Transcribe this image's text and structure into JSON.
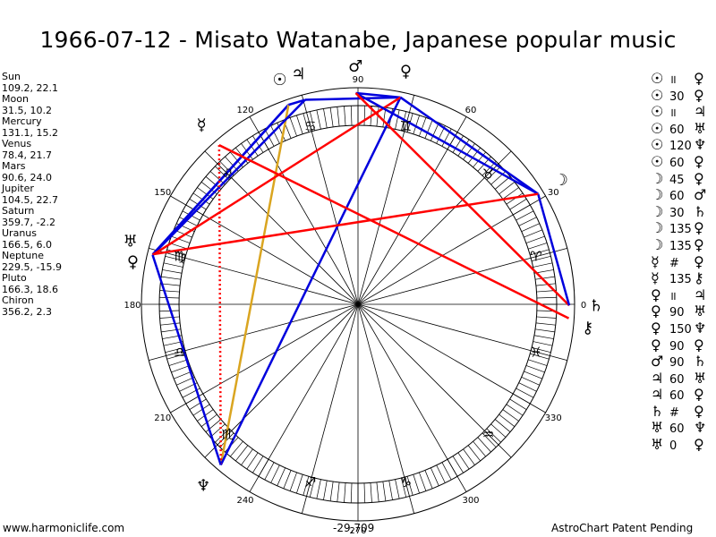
{
  "title": "1966-07-12 - Misato Watanabe, Japanese popular music",
  "positions": [
    {
      "name": "Sun",
      "value": "109.2, 22.1"
    },
    {
      "name": "Moon",
      "value": "31.5, 10.2"
    },
    {
      "name": "Mercury",
      "value": "131.1, 15.2"
    },
    {
      "name": "Venus",
      "value": "78.4, 21.7"
    },
    {
      "name": "Mars",
      "value": "90.6, 24.0"
    },
    {
      "name": "Jupiter",
      "value": "104.5, 22.7"
    },
    {
      "name": "Saturn",
      "value": "359.7, -2.2"
    },
    {
      "name": "Uranus",
      "value": "166.5, 6.0"
    },
    {
      "name": "Neptune",
      "value": "229.5, -15.9"
    },
    {
      "name": "Pluto",
      "value": "166.3, 18.6"
    },
    {
      "name": "Chiron",
      "value": "356.2, 2.3"
    }
  ],
  "aspects": [
    {
      "p1": "Sun",
      "g1": "☉",
      "aspect": "॥",
      "g2": "♀",
      "p2": "Venus"
    },
    {
      "p1": "Sun",
      "g1": "☉",
      "aspect": "30",
      "g2": "♀",
      "p2": "Venus"
    },
    {
      "p1": "Sun",
      "g1": "☉",
      "aspect": "॥",
      "g2": "♃",
      "p2": "Jupiter"
    },
    {
      "p1": "Sun",
      "g1": "☉",
      "aspect": "60",
      "g2": "♅",
      "p2": "Uranus"
    },
    {
      "p1": "Sun",
      "g1": "☉",
      "aspect": "120",
      "g2": "♆",
      "p2": "Neptune"
    },
    {
      "p1": "Sun",
      "g1": "☉",
      "aspect": "60",
      "g2": "♀",
      "p2": "Pluto"
    },
    {
      "p1": "Moon",
      "g1": "☽",
      "aspect": "45",
      "g2": "♀",
      "p2": "Venus"
    },
    {
      "p1": "Moon",
      "g1": "☽",
      "aspect": "60",
      "g2": "♂",
      "p2": "Mars"
    },
    {
      "p1": "Moon",
      "g1": "☽",
      "aspect": "30",
      "g2": "♄",
      "p2": "Saturn"
    },
    {
      "p1": "Moon",
      "g1": "☽",
      "aspect": "135",
      "g2": "♀",
      "p2": "Pluto"
    },
    {
      "p1": "Moon",
      "g1": "☽",
      "aspect": "135",
      "g2": "♀",
      "p2": "Pluto"
    },
    {
      "p1": "Mercury",
      "g1": "☿",
      "aspect": "#",
      "g2": "♀",
      "p2": "Pluto"
    },
    {
      "p1": "Mercury",
      "g1": "☿",
      "aspect": "135",
      "g2": "⚷",
      "p2": "Chiron"
    },
    {
      "p1": "Venus",
      "g1": "♀",
      "aspect": "॥",
      "g2": "♃",
      "p2": "Jupiter"
    },
    {
      "p1": "Venus",
      "g1": "♀",
      "aspect": "90",
      "g2": "♅",
      "p2": "Uranus"
    },
    {
      "p1": "Venus",
      "g1": "♀",
      "aspect": "150",
      "g2": "♆",
      "p2": "Neptune"
    },
    {
      "p1": "Venus",
      "g1": "♀",
      "aspect": "90",
      "g2": "♀",
      "p2": "Pluto"
    },
    {
      "p1": "Mars",
      "g1": "♂",
      "aspect": "90",
      "g2": "♄",
      "p2": "Saturn"
    },
    {
      "p1": "Jupiter",
      "g1": "♃",
      "aspect": "60",
      "g2": "♅",
      "p2": "Uranus"
    },
    {
      "p1": "Jupiter",
      "g1": "♃",
      "aspect": "60",
      "g2": "♀",
      "p2": "Pluto"
    },
    {
      "p1": "Saturn",
      "g1": "♄",
      "aspect": "#",
      "g2": "♀",
      "p2": "Pluto"
    },
    {
      "p1": "Uranus",
      "g1": "♅",
      "aspect": "60",
      "g2": "♆",
      "p2": "Neptune"
    },
    {
      "p1": "Uranus",
      "g1": "♅",
      "aspect": "0",
      "g2": "♀",
      "p2": "Pluto"
    }
  ],
  "wheel": {
    "degree_labels": [
      "30",
      "60",
      "90",
      "120",
      "150",
      "180",
      "210",
      "240",
      "270",
      "300",
      "330",
      "0"
    ],
    "signs": [
      {
        "sign": "Aries",
        "glyph": "♈",
        "lon": 15
      },
      {
        "sign": "Taurus",
        "glyph": "♉",
        "lon": 45
      },
      {
        "sign": "Gemini",
        "glyph": "♊",
        "lon": 75
      },
      {
        "sign": "Cancer",
        "glyph": "♋",
        "lon": 105
      },
      {
        "sign": "Leo",
        "glyph": "♌",
        "lon": 135
      },
      {
        "sign": "Virgo",
        "glyph": "♍",
        "lon": 165
      },
      {
        "sign": "Libra",
        "glyph": "♎",
        "lon": 195
      },
      {
        "sign": "Scorpio",
        "glyph": "♏",
        "lon": 225
      },
      {
        "sign": "Sagittarius",
        "glyph": "♐",
        "lon": 255
      },
      {
        "sign": "Capricorn",
        "glyph": "♑",
        "lon": 285
      },
      {
        "sign": "Aquarius",
        "glyph": "♒",
        "lon": 315
      },
      {
        "sign": "Pisces",
        "glyph": "♓",
        "lon": 345
      }
    ],
    "planets": [
      {
        "name": "Sun",
        "glyph": "☉",
        "lon": 109.2
      },
      {
        "name": "Moon",
        "glyph": "☽",
        "lon": 31.5
      },
      {
        "name": "Mercury",
        "glyph": "☿",
        "lon": 131.1
      },
      {
        "name": "Venus",
        "glyph": "♀",
        "lon": 78.4
      },
      {
        "name": "Mars",
        "glyph": "♂",
        "lon": 90.6
      },
      {
        "name": "Jupiter",
        "glyph": "♃",
        "lon": 104.5
      },
      {
        "name": "Saturn",
        "glyph": "♄",
        "lon": 359.7
      },
      {
        "name": "Uranus",
        "glyph": "♅",
        "lon": 166.5
      },
      {
        "name": "Neptune",
        "glyph": "♆",
        "lon": 229.5
      },
      {
        "name": "Pluto",
        "glyph": "♀",
        "lon": 166.3
      },
      {
        "name": "Chiron",
        "glyph": "⚷",
        "lon": 356.2
      }
    ],
    "aspect_lines": [
      {
        "from": "Sun",
        "to": "Uranus",
        "color": "#0000dd",
        "style": "solid"
      },
      {
        "from": "Sun",
        "to": "Pluto",
        "color": "#0000dd",
        "style": "solid"
      },
      {
        "from": "Sun",
        "to": "Neptune",
        "color": "#daa520",
        "style": "solid"
      },
      {
        "from": "Jupiter",
        "to": "Uranus",
        "color": "#0000dd",
        "style": "solid"
      },
      {
        "from": "Jupiter",
        "to": "Venus",
        "color": "#0000dd",
        "style": "solid"
      },
      {
        "from": "Jupiter",
        "to": "Sun",
        "color": "#0000dd",
        "style": "solid"
      },
      {
        "from": "Venus",
        "to": "Mars",
        "color": "#0000dd",
        "style": "solid"
      },
      {
        "from": "Venus",
        "to": "Neptune",
        "color": "#0000dd",
        "style": "solid"
      },
      {
        "from": "Venus",
        "to": "Uranus",
        "color": "#ff0000",
        "style": "solid"
      },
      {
        "from": "Venus",
        "to": "Moon",
        "color": "#0000dd",
        "style": "solid"
      },
      {
        "from": "Mars",
        "to": "Moon",
        "color": "#0000dd",
        "style": "solid"
      },
      {
        "from": "Mars",
        "to": "Saturn",
        "color": "#ff0000",
        "style": "solid"
      },
      {
        "from": "Moon",
        "to": "Saturn",
        "color": "#0000dd",
        "style": "solid"
      },
      {
        "from": "Moon",
        "to": "Pluto",
        "color": "#ff0000",
        "style": "solid"
      },
      {
        "from": "Mercury",
        "to": "Chiron",
        "color": "#ff0000",
        "style": "solid"
      },
      {
        "from": "Mercury",
        "to": "Neptune",
        "color": "#ff0000",
        "style": "dotted"
      },
      {
        "from": "Uranus",
        "to": "Neptune",
        "color": "#0000dd",
        "style": "solid"
      }
    ]
  },
  "footer": {
    "site": "www.harmoniclife.com",
    "coordinate": "-29,709",
    "patent": "AstroChart Patent Pending"
  },
  "colors": {
    "harmonious": "#0000dd",
    "tense": "#ff0000",
    "minor": "#daa520"
  }
}
